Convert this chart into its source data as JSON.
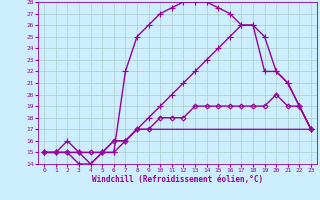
{
  "xlabel": "Windchill (Refroidissement éolien,°C)",
  "background_color": "#cceeff",
  "grid_color": "#aacccc",
  "line_color": "#990099",
  "xlim": [
    -0.5,
    23.5
  ],
  "ylim": [
    14,
    28
  ],
  "xticks": [
    0,
    1,
    2,
    3,
    4,
    5,
    6,
    7,
    8,
    9,
    10,
    11,
    12,
    13,
    14,
    15,
    16,
    17,
    18,
    19,
    20,
    21,
    22,
    23
  ],
  "yticks": [
    14,
    15,
    16,
    17,
    18,
    19,
    20,
    21,
    22,
    23,
    24,
    25,
    26,
    27,
    28
  ],
  "series": [
    {
      "x": [
        0,
        1,
        2,
        3,
        4,
        5,
        6,
        7,
        8,
        9,
        10,
        11,
        12,
        13,
        14,
        15,
        16,
        17,
        18,
        19,
        20,
        21,
        22,
        23
      ],
      "y": [
        15,
        15,
        15,
        14,
        14,
        15,
        15,
        16,
        17,
        18,
        19,
        20,
        21,
        22,
        23,
        24,
        25,
        26,
        26,
        25,
        22,
        21,
        19,
        17
      ],
      "marker": "+",
      "color": "#990099",
      "linewidth": 1.0,
      "markersize": 4
    },
    {
      "x": [
        0,
        1,
        2,
        3,
        4,
        5,
        6,
        7,
        8,
        9,
        10,
        11,
        12,
        13,
        14,
        15,
        16,
        17,
        18,
        19,
        20,
        21,
        22,
        23
      ],
      "y": [
        15,
        15,
        16,
        15,
        14,
        15,
        15,
        22,
        25,
        26,
        27,
        27.5,
        28,
        28,
        28,
        27.5,
        27,
        26,
        26,
        22,
        22,
        21,
        19,
        17
      ],
      "marker": "+",
      "color": "#990099",
      "linewidth": 1.0,
      "markersize": 4
    },
    {
      "x": [
        0,
        1,
        2,
        3,
        4,
        5,
        6,
        7,
        8,
        9,
        10,
        11,
        12,
        13,
        14,
        15,
        16,
        17,
        18,
        19,
        20,
        21,
        22,
        23
      ],
      "y": [
        15,
        15,
        15,
        15,
        15,
        15,
        16,
        16,
        17,
        17,
        17,
        17,
        17,
        17,
        17,
        17,
        17,
        17,
        17,
        17,
        17,
        17,
        17,
        17
      ],
      "marker": null,
      "color": "#990099",
      "linewidth": 0.9,
      "markersize": 0
    },
    {
      "x": [
        0,
        1,
        2,
        3,
        4,
        5,
        6,
        7,
        8,
        9,
        10,
        11,
        12,
        13,
        14,
        15,
        16,
        17,
        18,
        19,
        20,
        21,
        22,
        23
      ],
      "y": [
        15,
        15,
        15,
        15,
        15,
        15,
        16,
        16,
        17,
        17,
        18,
        18,
        18,
        19,
        19,
        19,
        19,
        19,
        19,
        19,
        20,
        19,
        19,
        17
      ],
      "marker": "D",
      "color": "#990099",
      "linewidth": 1.0,
      "markersize": 2.5
    }
  ]
}
